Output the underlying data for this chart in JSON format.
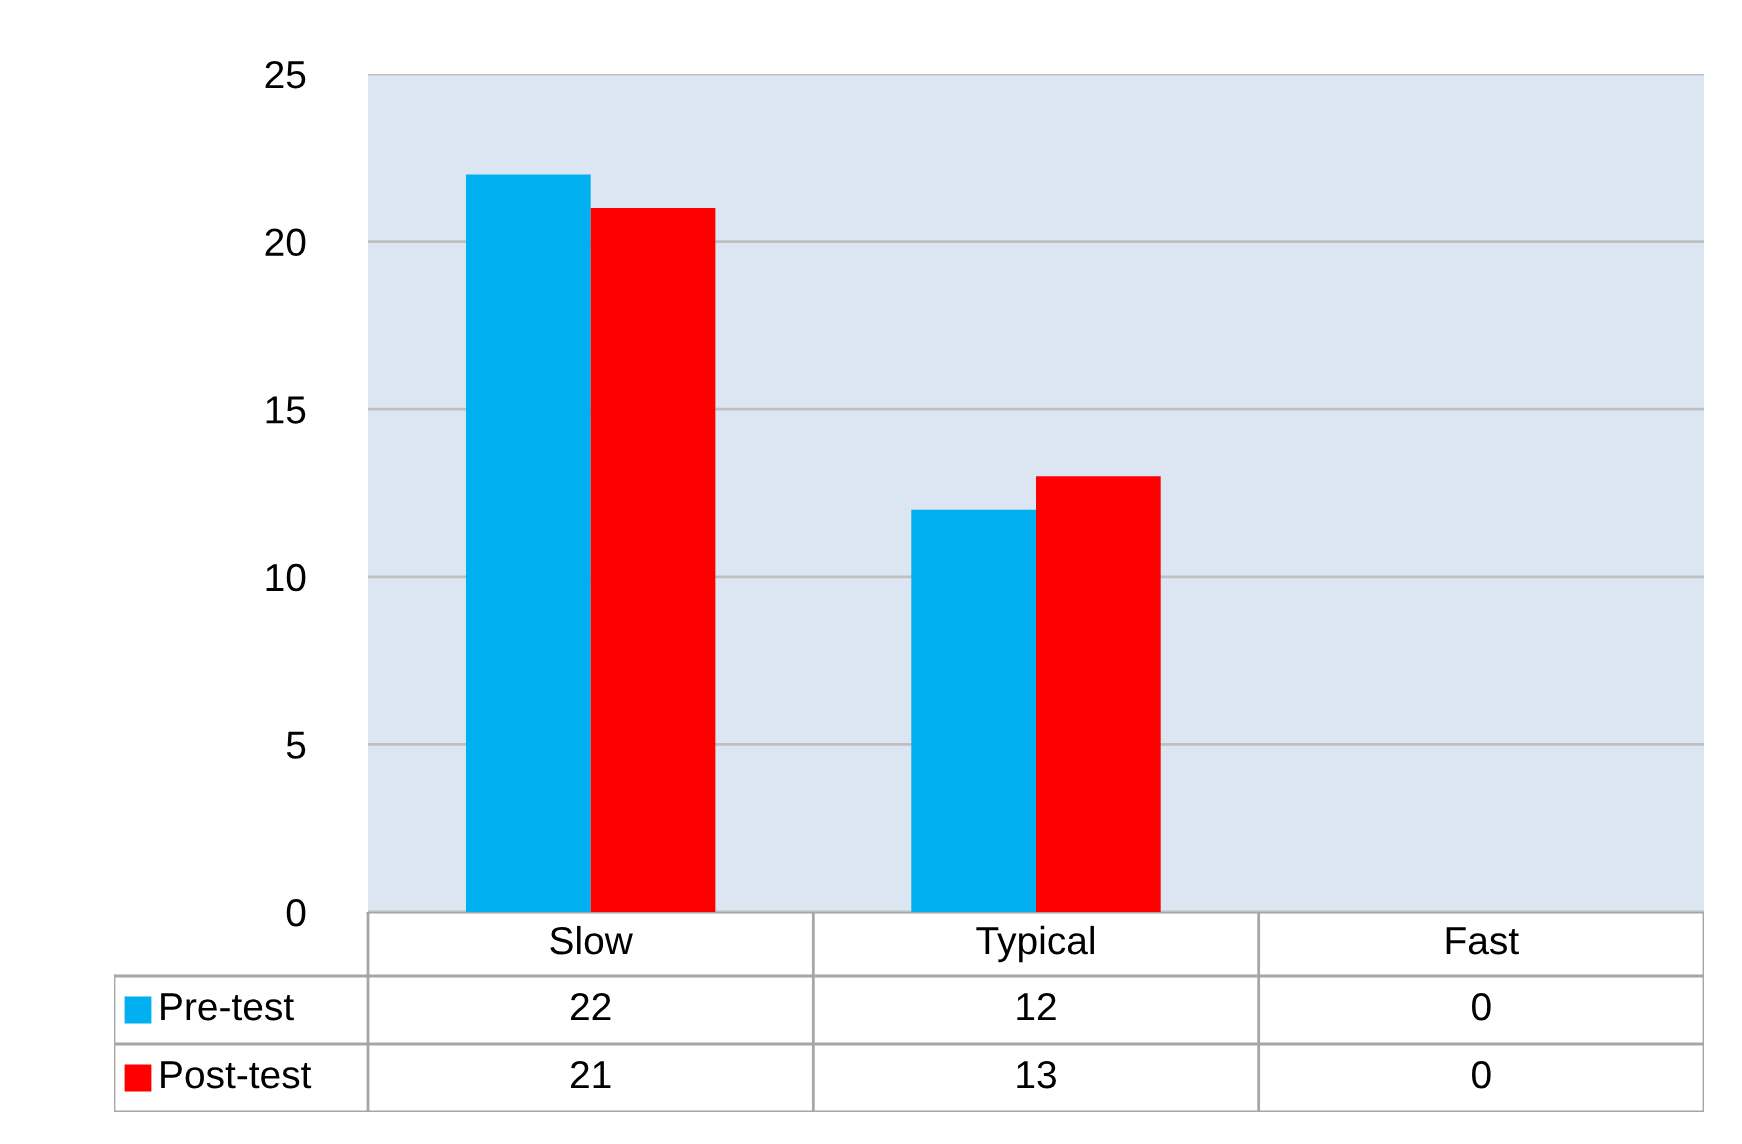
{
  "chart_data": {
    "type": "bar",
    "categories": [
      "Slow",
      "Typical",
      "Fast"
    ],
    "series": [
      {
        "name": "Pre-test",
        "color": "#00b0f0",
        "values": [
          22,
          12,
          0
        ]
      },
      {
        "name": "Post-test",
        "color": "#ff0000",
        "values": [
          21,
          13,
          0
        ]
      }
    ],
    "ylim": [
      0,
      25
    ],
    "yticks": [
      0,
      5,
      10,
      15,
      20,
      25
    ],
    "grid": "y",
    "legend": "bottom",
    "data_labels": true
  }
}
